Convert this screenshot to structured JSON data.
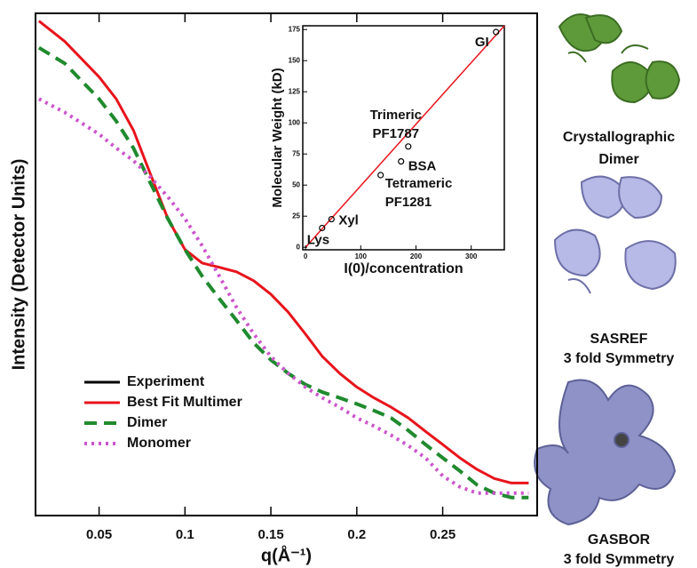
{
  "chart_data": [
    {
      "type": "line",
      "log_y": true,
      "x_label": "q(Å⁻¹)",
      "y_label": "Intensity (Detector Units)",
      "x": [
        0.015,
        0.03,
        0.05,
        0.06,
        0.07,
        0.08,
        0.09,
        0.1,
        0.11,
        0.12,
        0.13,
        0.14,
        0.15,
        0.16,
        0.17,
        0.18,
        0.19,
        0.2,
        0.21,
        0.22,
        0.23,
        0.24,
        0.25,
        0.26,
        0.27,
        0.28,
        0.29,
        0.3
      ],
      "xlim": [
        0.013,
        0.305
      ],
      "xticks": [
        0.05,
        0.1,
        0.15,
        0.2,
        0.25
      ],
      "ylim": [
        0.05,
        48
      ],
      "legend": "lower left",
      "series": [
        {
          "name": "Experiment",
          "color": "#000000",
          "dash": "solid",
          "values": [
            43.2,
            32.7,
            20.1,
            14.9,
            9.7,
            5.3,
            2.9,
            1.9,
            1.58,
            1.49,
            1.4,
            1.24,
            1.03,
            0.81,
            0.6,
            0.44,
            0.35,
            0.29,
            0.25,
            0.22,
            0.19,
            0.158,
            0.132,
            0.11,
            0.094,
            0.083,
            0.078,
            0.078
          ]
        },
        {
          "name": "Best Fit Multimer",
          "color": "#e8141c",
          "dash": "solid",
          "values": [
            43.2,
            32.7,
            20.1,
            14.9,
            9.7,
            5.3,
            2.9,
            1.9,
            1.58,
            1.49,
            1.4,
            1.24,
            1.03,
            0.81,
            0.6,
            0.44,
            0.35,
            0.29,
            0.25,
            0.22,
            0.19,
            0.158,
            0.132,
            0.11,
            0.094,
            0.083,
            0.078,
            0.078
          ]
        },
        {
          "name": "Dimer",
          "color": "#1f8a2e",
          "dash": "dashed",
          "values": [
            30,
            24.2,
            14.9,
            11.0,
            7.6,
            4.7,
            2.9,
            1.9,
            1.32,
            0.97,
            0.72,
            0.53,
            0.42,
            0.35,
            0.3,
            0.27,
            0.25,
            0.23,
            0.21,
            0.19,
            0.16,
            0.132,
            0.11,
            0.092,
            0.076,
            0.068,
            0.064,
            0.064
          ]
        },
        {
          "name": "Monomer",
          "color": "#cc55cc",
          "dash": "dotted",
          "values": [
            14.9,
            12.4,
            9.2,
            7.6,
            6.4,
            5.1,
            3.9,
            2.9,
            2.0,
            1.32,
            0.86,
            0.6,
            0.44,
            0.35,
            0.29,
            0.25,
            0.22,
            0.19,
            0.17,
            0.15,
            0.13,
            0.11,
            0.086,
            0.074,
            0.068,
            0.068,
            0.068,
            0.068
          ]
        }
      ]
    },
    {
      "type": "scatter",
      "x_label": "I(0)/concentration",
      "y_label": "Molecular Weight (kD)",
      "x": [
        30,
        47,
        136,
        173,
        186,
        345
      ],
      "values": [
        15.5,
        22.6,
        58,
        69,
        81,
        173
      ],
      "point_labels": [
        [
          "Lys"
        ],
        [
          "Xyl"
        ],
        [
          "Tetrameric",
          "PF1281"
        ],
        [
          "BSA"
        ],
        [
          "Trimeric",
          "PF1787"
        ],
        [
          "GI"
        ]
      ],
      "fit": {
        "color": "#e8141c",
        "x": [
          0,
          360
        ],
        "values": [
          0,
          178
        ]
      },
      "xlim": [
        -5,
        360
      ],
      "xticks": [
        0,
        100,
        200,
        300
      ],
      "ylim": [
        -2,
        178
      ],
      "yticks": [
        0,
        25,
        50,
        75,
        100,
        125,
        150,
        175
      ]
    }
  ],
  "panels": [
    {
      "caption": [
        "Crystallographic",
        "Dimer"
      ]
    },
    {
      "caption": [
        "SASREF",
        "3 fold Symmetry"
      ]
    },
    {
      "caption": [
        "GASBOR",
        "3 fold Symmetry"
      ]
    }
  ]
}
